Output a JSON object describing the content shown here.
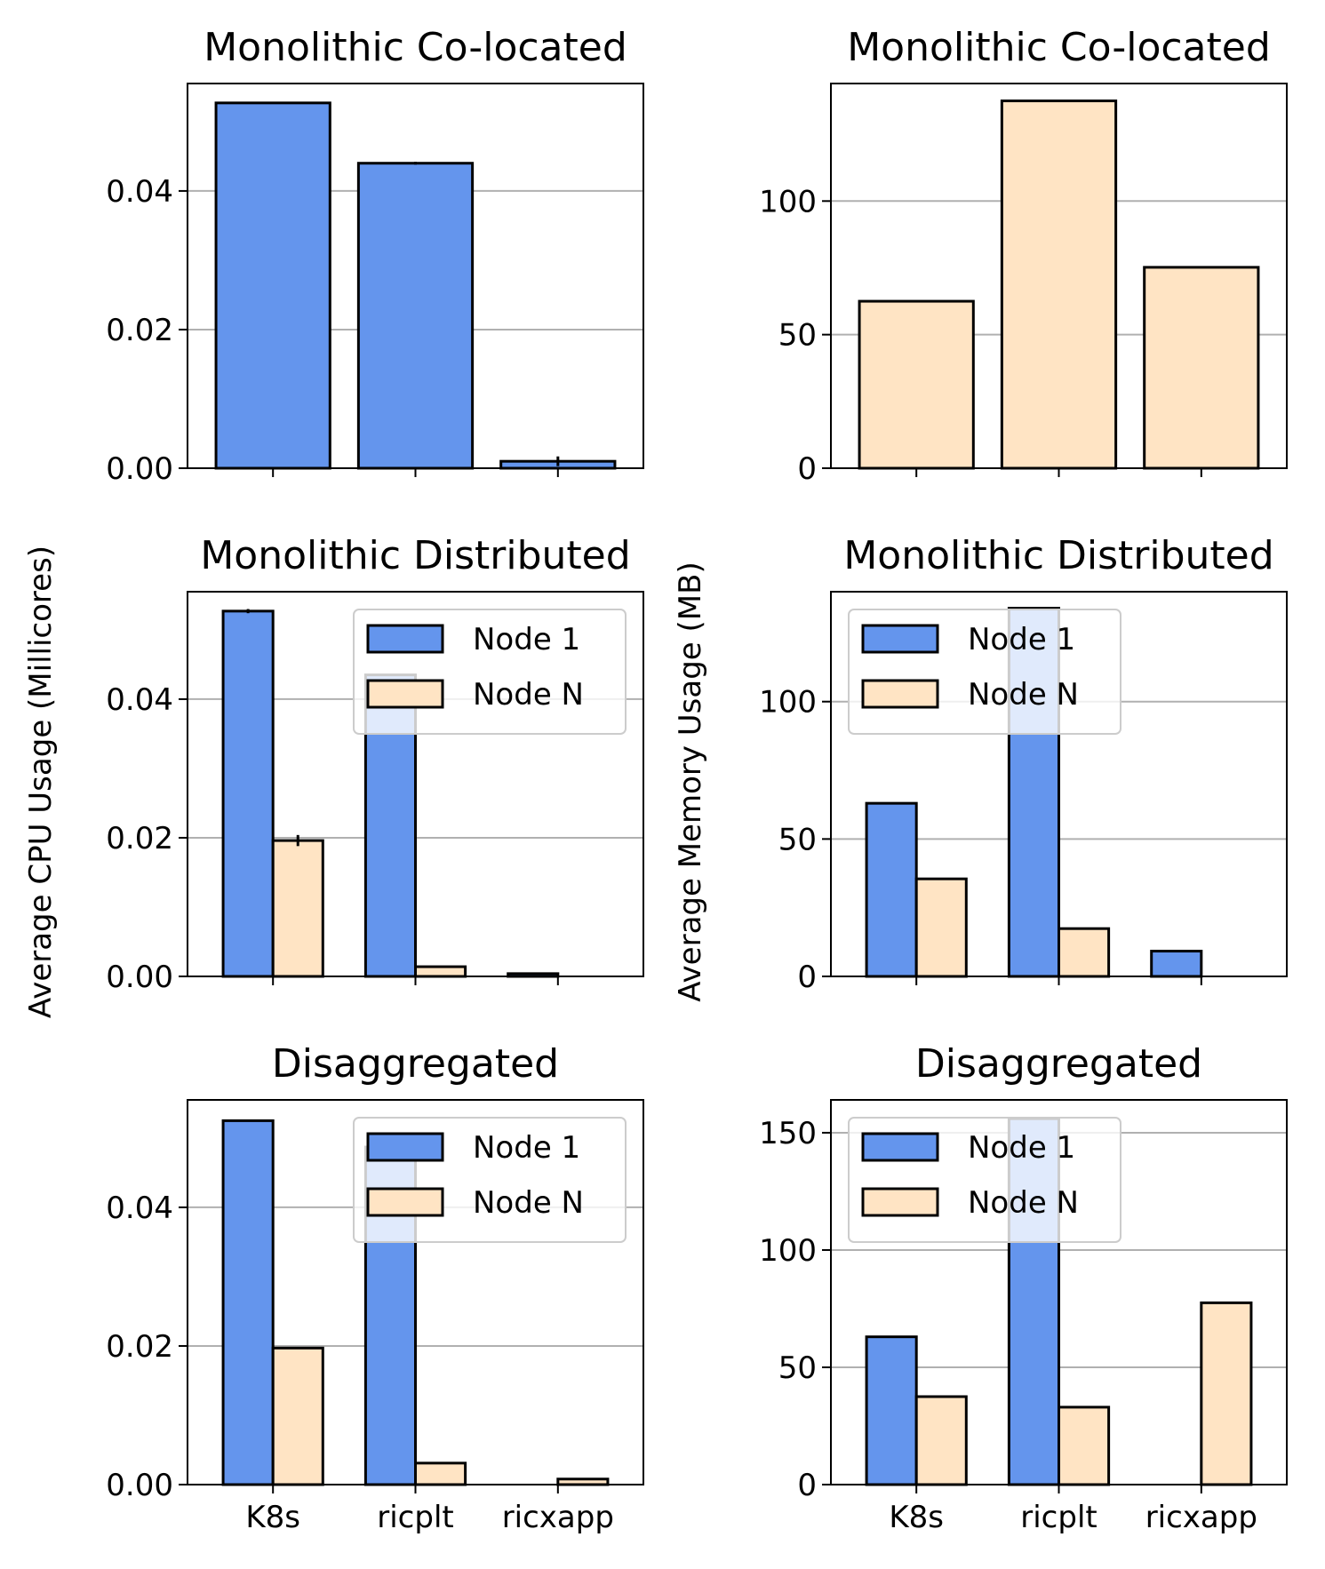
{
  "figure": {
    "ylabel_left": "Average CPU Usage (Millicores)",
    "ylabel_right": "Average Memory Usage (MB)"
  },
  "colors": {
    "node1": "#6495ED",
    "nodeN": "#FFE4C4",
    "grid": "#b0b0b0",
    "edge": "#000000"
  },
  "chart_data": [
    {
      "id": "cpu-mono-coloc",
      "type": "bar",
      "title": "Monolithic Co-located",
      "categories": [
        "K8s",
        "ricplt",
        "ricxapp"
      ],
      "ylim": [
        0,
        0.0555
      ],
      "yticks": [
        0.0,
        0.02,
        0.04
      ],
      "ytick_labels": [
        "0.00",
        "0.02",
        "0.04"
      ],
      "grid": "y",
      "legend": null,
      "show_xtick_labels": false,
      "series": [
        {
          "color_key": "node1",
          "values": [
            0.0527,
            0.044,
            0.001
          ],
          "errors": [
            0,
            0.0002,
            0.0007
          ]
        }
      ]
    },
    {
      "id": "mem-mono-coloc",
      "type": "bar",
      "title": "Monolithic Co-located",
      "categories": [
        "K8s",
        "ricplt",
        "ricxapp"
      ],
      "ylim": [
        0,
        144
      ],
      "yticks": [
        0,
        50,
        100
      ],
      "ytick_labels": [
        "0",
        "50",
        "100"
      ],
      "grid": "y",
      "legend": null,
      "show_xtick_labels": false,
      "series": [
        {
          "color_key": "nodeN",
          "values": [
            62.5,
            137.5,
            75.2
          ],
          "errors": [
            0,
            0,
            0
          ]
        }
      ]
    },
    {
      "id": "cpu-mono-dist",
      "type": "bar",
      "title": "Monolithic Distributed",
      "categories": [
        "K8s",
        "ricplt",
        "ricxapp"
      ],
      "ylim": [
        0,
        0.0555
      ],
      "yticks": [
        0.0,
        0.02,
        0.04
      ],
      "ytick_labels": [
        "0.00",
        "0.02",
        "0.04"
      ],
      "grid": "y",
      "legend": "upper right",
      "show_xtick_labels": false,
      "series": [
        {
          "name": "Node 1",
          "color_key": "node1",
          "values": [
            0.0527,
            0.0435,
            0.0004
          ],
          "errors": [
            0.0003,
            0,
            0
          ]
        },
        {
          "name": "Node N",
          "color_key": "nodeN",
          "values": [
            0.0196,
            0.0014,
            0.0
          ],
          "errors": [
            0.0008,
            0,
            0
          ]
        }
      ]
    },
    {
      "id": "mem-mono-dist",
      "type": "bar",
      "title": "Monolithic Distributed",
      "categories": [
        "K8s",
        "ricplt",
        "ricxapp"
      ],
      "ylim": [
        0,
        140
      ],
      "yticks": [
        0,
        50,
        100
      ],
      "ytick_labels": [
        "0",
        "50",
        "100"
      ],
      "grid": "y",
      "legend": "upper left",
      "show_xtick_labels": false,
      "series": [
        {
          "name": "Node 1",
          "color_key": "node1",
          "values": [
            63,
            134,
            9.2
          ],
          "errors": [
            0,
            0,
            0
          ]
        },
        {
          "name": "Node N",
          "color_key": "nodeN",
          "values": [
            35.5,
            17.4,
            0
          ],
          "errors": [
            0,
            0,
            0
          ]
        }
      ]
    },
    {
      "id": "cpu-disagg",
      "type": "bar",
      "title": "Disaggregated",
      "categories": [
        "K8s",
        "ricplt",
        "ricxapp"
      ],
      "ylim": [
        0,
        0.0555
      ],
      "yticks": [
        0.0,
        0.02,
        0.04
      ],
      "ytick_labels": [
        "0.00",
        "0.02",
        "0.04"
      ],
      "grid": "y",
      "legend": "upper right",
      "show_xtick_labels": true,
      "series": [
        {
          "name": "Node 1",
          "color_key": "node1",
          "values": [
            0.0525,
            0.0487,
            0.0
          ],
          "errors": [
            0,
            0,
            0
          ]
        },
        {
          "name": "Node N",
          "color_key": "nodeN",
          "values": [
            0.0197,
            0.0031,
            0.0008
          ],
          "errors": [
            0,
            0,
            0
          ]
        }
      ]
    },
    {
      "id": "mem-disagg",
      "type": "bar",
      "title": "Disaggregated",
      "categories": [
        "K8s",
        "ricplt",
        "ricxapp"
      ],
      "ylim": [
        0,
        164
      ],
      "yticks": [
        0,
        50,
        100,
        150
      ],
      "ytick_labels": [
        "0",
        "50",
        "100",
        "150"
      ],
      "grid": "y",
      "legend": "upper left",
      "show_xtick_labels": true,
      "series": [
        {
          "name": "Node 1",
          "color_key": "node1",
          "values": [
            63,
            156,
            0
          ],
          "errors": [
            0,
            0,
            0
          ]
        },
        {
          "name": "Node N",
          "color_key": "nodeN",
          "values": [
            37.5,
            33,
            77.5
          ],
          "errors": [
            0,
            0,
            0
          ]
        }
      ]
    }
  ]
}
